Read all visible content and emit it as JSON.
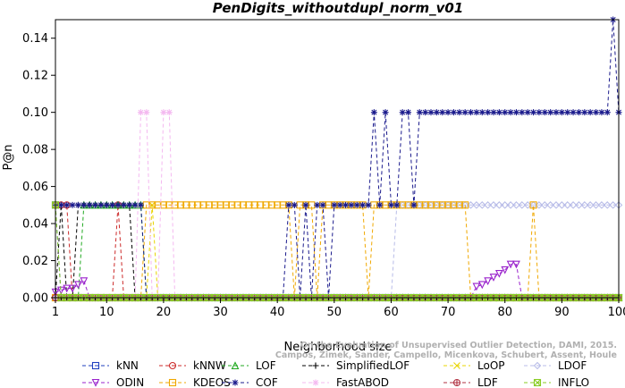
{
  "chart_data": {
    "type": "line",
    "title": "PenDigits_withoutdupl_norm_v01",
    "xlabel": "Neighborhood size",
    "ylabel": "P@n",
    "xlim": [
      1,
      100
    ],
    "ylim": [
      0,
      0.15
    ],
    "x_ticks": [
      1,
      10,
      20,
      30,
      40,
      50,
      60,
      70,
      80,
      90,
      100
    ],
    "y_ticks": [
      "0.00",
      "0.02",
      "0.04",
      "0.06",
      "0.08",
      "0.10",
      "0.12",
      "0.14"
    ],
    "legend_position": "bottom",
    "credit_lines": [
      "Campos, Zimek, Sander, Campello, Micenkova, Schubert, Assent, Houle",
      "On the Evaluation of Unsupervised Outlier Detection, DAMI, 2015."
    ],
    "series": [
      {
        "name": "kNN",
        "color": "#1f3fbf",
        "marker": "square",
        "segments": [
          [
            1,
            0.05
          ],
          [
            2,
            0
          ],
          [
            100,
            0
          ]
        ]
      },
      {
        "name": "kNNW",
        "color": "#cc2a2a",
        "marker": "circle",
        "segments": [
          [
            1,
            0.05
          ],
          [
            3,
            0.05
          ],
          [
            4,
            0
          ],
          [
            11,
            0
          ],
          [
            12,
            0.05
          ],
          [
            13,
            0
          ],
          [
            100,
            0
          ]
        ]
      },
      {
        "name": "LOF",
        "color": "#22aa22",
        "marker": "triangle-up",
        "segments": [
          [
            1,
            0
          ],
          [
            5,
            0
          ],
          [
            6,
            0.05
          ],
          [
            16,
            0.05
          ],
          [
            17,
            0
          ],
          [
            100,
            0
          ]
        ]
      },
      {
        "name": "SimplifiedLOF",
        "color": "#000000",
        "marker": "plus",
        "segments": [
          [
            1,
            0
          ],
          [
            2,
            0.05
          ],
          [
            3,
            0
          ],
          [
            4,
            0
          ],
          [
            5,
            0.05
          ],
          [
            14,
            0.05
          ],
          [
            15,
            0
          ],
          [
            100,
            0
          ]
        ]
      },
      {
        "name": "LoOP",
        "color": "#e8d400",
        "marker": "x",
        "segments": [
          [
            1,
            0
          ],
          [
            17,
            0
          ],
          [
            18,
            0.05
          ],
          [
            19,
            0
          ],
          [
            100,
            0
          ]
        ]
      },
      {
        "name": "LDOF",
        "color": "#b8bce8",
        "marker": "diamond",
        "segments": [
          [
            1,
            0
          ],
          [
            60,
            0
          ],
          [
            61,
            0.05
          ],
          [
            100,
            0.05
          ]
        ]
      },
      {
        "name": "ODIN",
        "color": "#9a22cc",
        "marker": "triangle-down",
        "segments": [
          [
            1,
            0.003
          ],
          [
            2,
            0.004
          ],
          [
            3,
            0.005
          ],
          [
            4,
            0.005
          ],
          [
            5,
            0.007
          ],
          [
            6,
            0.009
          ],
          [
            7,
            0
          ],
          [
            74,
            0
          ],
          [
            75,
            0.006
          ],
          [
            76,
            0.007
          ],
          [
            77,
            0.009
          ],
          [
            78,
            0.011
          ],
          [
            79,
            0.013
          ],
          [
            80,
            0.015
          ],
          [
            81,
            0.018
          ],
          [
            82,
            0.018
          ],
          [
            83,
            0
          ],
          [
            100,
            0
          ]
        ]
      },
      {
        "name": "KDEOS",
        "color": "#f0a800",
        "marker": "square",
        "segments": [
          [
            1,
            0
          ],
          [
            16,
            0
          ],
          [
            17,
            0.05
          ],
          [
            42,
            0.05
          ],
          [
            43,
            0
          ],
          [
            44,
            0.05
          ],
          [
            46,
            0.05
          ],
          [
            47,
            0
          ],
          [
            48,
            0.05
          ],
          [
            55,
            0.05
          ],
          [
            56,
            0
          ],
          [
            57,
            0.05
          ],
          [
            63,
            0.05
          ],
          [
            64,
            0.05
          ],
          [
            73,
            0.05
          ],
          [
            74,
            0
          ],
          [
            84,
            0
          ],
          [
            85,
            0.05
          ],
          [
            86,
            0
          ],
          [
            100,
            0
          ]
        ]
      },
      {
        "name": "COF",
        "color": "#1a1a8c",
        "marker": "star",
        "segments": [
          [
            1,
            0.05
          ],
          [
            16,
            0.05
          ],
          [
            17,
            0
          ],
          [
            41,
            0
          ],
          [
            42,
            0.05
          ],
          [
            43,
            0.05
          ],
          [
            44,
            0
          ],
          [
            45,
            0.05
          ],
          [
            46,
            0
          ],
          [
            47,
            0.05
          ],
          [
            48,
            0.05
          ],
          [
            49,
            0
          ],
          [
            50,
            0.05
          ],
          [
            56,
            0.05
          ],
          [
            57,
            0.1
          ],
          [
            58,
            0.05
          ],
          [
            59,
            0.1
          ],
          [
            60,
            0.05
          ],
          [
            61,
            0.05
          ],
          [
            62,
            0.1
          ],
          [
            63,
            0.1
          ],
          [
            64,
            0.05
          ],
          [
            65,
            0.1
          ],
          [
            98,
            0.1
          ],
          [
            99,
            0.15
          ],
          [
            100,
            0.1
          ]
        ]
      },
      {
        "name": "FastABOD",
        "color": "#f4b8f0",
        "marker": "star-outline",
        "segments": [
          [
            1,
            0
          ],
          [
            15,
            0
          ],
          [
            16,
            0.1
          ],
          [
            17,
            0.1
          ],
          [
            18,
            0
          ],
          [
            19,
            0
          ],
          [
            20,
            0.1
          ],
          [
            21,
            0.1
          ],
          [
            22,
            0
          ],
          [
            100,
            0
          ]
        ]
      },
      {
        "name": "LDF",
        "color": "#b03040",
        "marker": "circle-plus",
        "segments": [
          [
            1,
            0
          ],
          [
            100,
            0
          ]
        ]
      },
      {
        "name": "INFLO",
        "color": "#88cc22",
        "marker": "square-x",
        "segments": [
          [
            1,
            0.05
          ],
          [
            2,
            0
          ],
          [
            100,
            0
          ]
        ]
      }
    ]
  }
}
